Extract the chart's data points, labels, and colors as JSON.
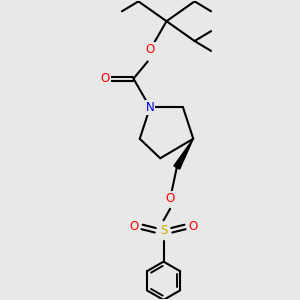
{
  "background_color": "#e8e8e8",
  "atom_colors": {
    "O": "#ff0000",
    "N": "#0000ee",
    "S": "#ccaa00",
    "C": "#000000"
  },
  "bond_color": "#000000",
  "bond_lw": 1.5,
  "figsize": [
    3.0,
    3.0
  ],
  "dpi": 100,
  "xlim": [
    -2.5,
    2.5
  ],
  "ylim": [
    -4.5,
    4.5
  ],
  "font_size": 7.5
}
